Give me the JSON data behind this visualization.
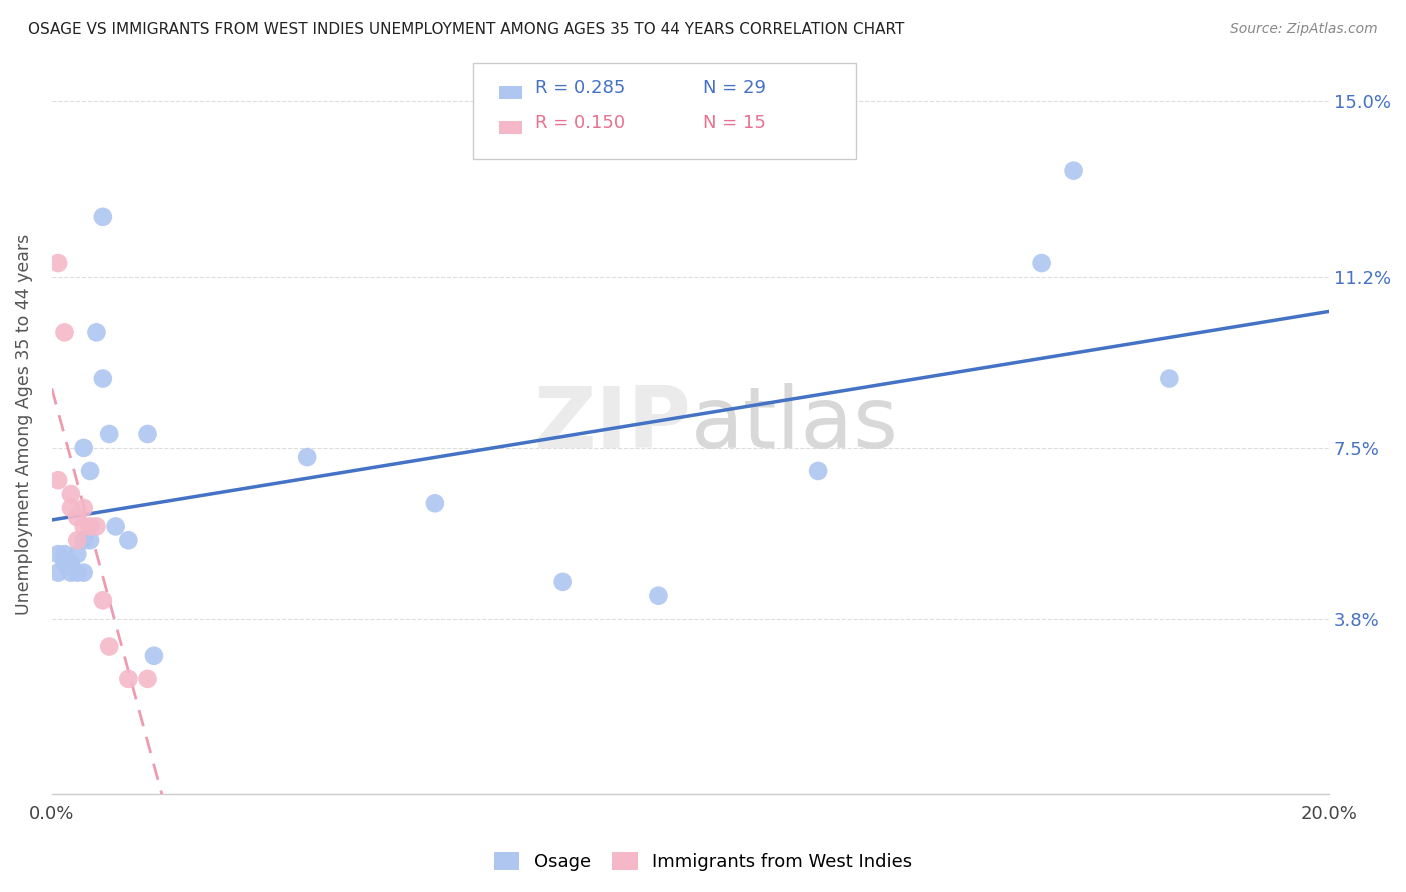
{
  "title": "OSAGE VS IMMIGRANTS FROM WEST INDIES UNEMPLOYMENT AMONG AGES 35 TO 44 YEARS CORRELATION CHART",
  "source": "Source: ZipAtlas.com",
  "ylabel": "Unemployment Among Ages 35 to 44 years",
  "xlim": [
    0.0,
    0.2
  ],
  "ylim": [
    0.0,
    0.16
  ],
  "yticks": [
    0.038,
    0.075,
    0.112,
    0.15
  ],
  "ytick_labels": [
    "3.8%",
    "7.5%",
    "11.2%",
    "15.0%"
  ],
  "xtick_vals": [
    0.0,
    0.04,
    0.08,
    0.12,
    0.16,
    0.2
  ],
  "xtick_labels": [
    "0.0%",
    "",
    "",
    "",
    "",
    "20.0%"
  ],
  "watermark": "ZIPatlas",
  "osage_x": [
    0.001,
    0.001,
    0.002,
    0.002,
    0.003,
    0.003,
    0.004,
    0.004,
    0.005,
    0.005,
    0.005,
    0.006,
    0.006,
    0.007,
    0.008,
    0.008,
    0.009,
    0.01,
    0.012,
    0.015,
    0.04,
    0.06,
    0.08,
    0.095,
    0.12,
    0.155,
    0.16,
    0.175,
    0.016
  ],
  "osage_y": [
    0.052,
    0.048,
    0.052,
    0.05,
    0.05,
    0.048,
    0.052,
    0.048,
    0.075,
    0.055,
    0.048,
    0.07,
    0.055,
    0.1,
    0.09,
    0.125,
    0.078,
    0.058,
    0.055,
    0.078,
    0.073,
    0.063,
    0.046,
    0.043,
    0.07,
    0.115,
    0.135,
    0.09,
    0.03
  ],
  "westindies_x": [
    0.001,
    0.001,
    0.002,
    0.003,
    0.003,
    0.004,
    0.004,
    0.005,
    0.005,
    0.006,
    0.007,
    0.008,
    0.009,
    0.012,
    0.015
  ],
  "westindies_y": [
    0.068,
    0.115,
    0.1,
    0.065,
    0.062,
    0.06,
    0.055,
    0.062,
    0.058,
    0.058,
    0.058,
    0.042,
    0.032,
    0.025,
    0.025
  ],
  "osage_color": "#aec6f0",
  "westindies_color": "#f4b8c8",
  "osage_line_color": "#4472c4",
  "westindies_line_color": "#e87090",
  "background_color": "#ffffff",
  "grid_color": "#dddddd",
  "legend_r1": "R = 0.285",
  "legend_n1": "N = 29",
  "legend_r2": "R = 0.150",
  "legend_n2": "N = 15",
  "legend_r_color": "#333333",
  "legend_n_color1": "#4472c4",
  "legend_n_color2": "#e87090",
  "bottom_legend_osage": "Osage",
  "bottom_legend_wi": "Immigrants from West Indies"
}
